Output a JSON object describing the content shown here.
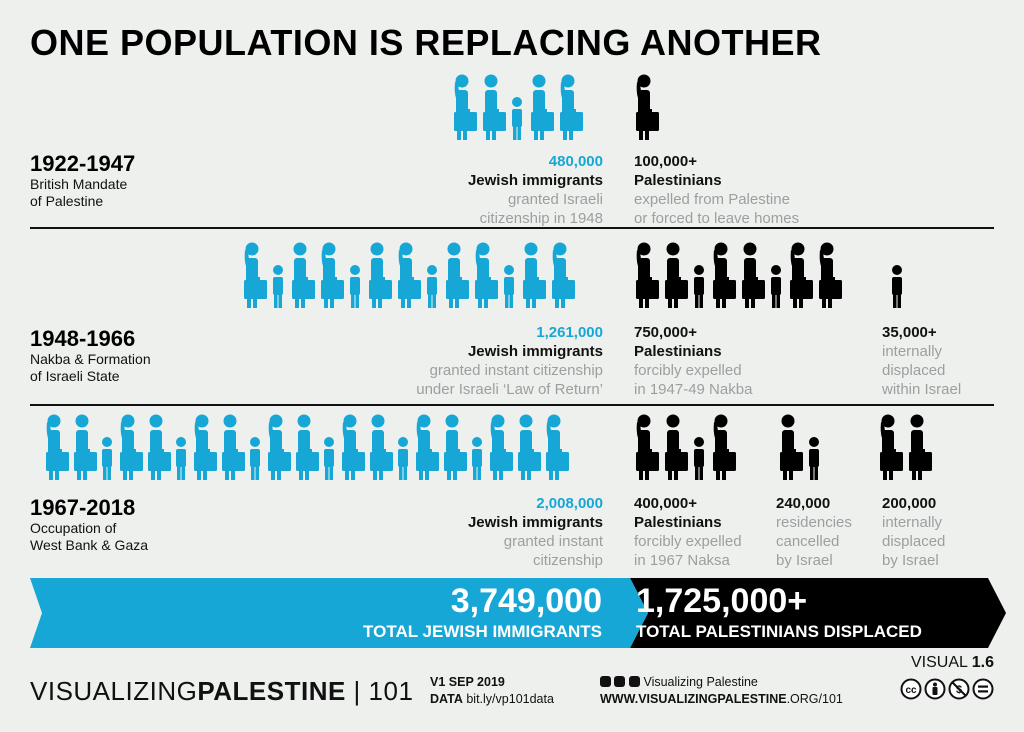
{
  "title": "ONE POPULATION IS REPLACING ANOTHER",
  "colors": {
    "jewish": "#17a7d6",
    "palestinian": "#000000",
    "muted": "#9aa0a0"
  },
  "icons": {
    "figure": "person-icon",
    "suitcase": "suitcase-icon"
  },
  "periods": [
    {
      "years": "1922-1947",
      "desc1": "British Mandate",
      "desc2": "of Palestine",
      "jewish": {
        "value": "480,000",
        "label": "Jewish immigrants",
        "sub1": "granted Israeli",
        "sub2": "citizenship in 1948",
        "sub3": ""
      },
      "pal": [
        {
          "value": "100,000+",
          "label": "Palestinians",
          "sub1": "expelled from Palestine",
          "sub2": "or forced to leave homes",
          "sub3": ""
        }
      ]
    },
    {
      "years": "1948-1966",
      "desc1": "Nakba & Formation",
      "desc2": "of Israeli State",
      "jewish": {
        "value": "1,261,000",
        "label": "Jewish immigrants",
        "sub1": "granted instant citizenship",
        "sub2": "under Israeli ‘Law of Return’",
        "sub3": ""
      },
      "pal": [
        {
          "value": "750,000+",
          "label": "Palestinians",
          "sub1": "forcibly expelled",
          "sub2": "in 1947-49 Nakba",
          "sub3": ""
        },
        {
          "value": "35,000+",
          "label": "",
          "sub1": "internally",
          "sub2": "displaced",
          "sub3": "within Israel"
        }
      ]
    },
    {
      "years": "1967-2018",
      "desc1": "Occupation of",
      "desc2": "West Bank & Gaza",
      "jewish": {
        "value": "2,008,000",
        "label": "Jewish immigrants",
        "sub1": "granted instant",
        "sub2": "citizenship",
        "sub3": ""
      },
      "pal": [
        {
          "value": "400,000+",
          "label": "Palestinians",
          "sub1": "forcibly expelled",
          "sub2": "in 1967 Naksa",
          "sub3": ""
        },
        {
          "value": "240,000",
          "label": "",
          "sub1": "residencies",
          "sub2": "cancelled",
          "sub3": "by Israel"
        },
        {
          "value": "200,000",
          "label": "",
          "sub1": "internally",
          "sub2": "displaced",
          "sub3": "by Israel"
        }
      ]
    }
  ],
  "totals": {
    "jewish_value": "3,749,000",
    "jewish_label": "TOTAL JEWISH IMMIGRANTS",
    "pal_value": "1,725,000+",
    "pal_label": "TOTAL PALESTINIANS DISPLACED"
  },
  "footer": {
    "brand_light": "VISUALIZING",
    "brand_bold": "PALESTINE",
    "brand_num": "101",
    "version": "V1",
    "date": "SEP 2019",
    "data_label": "DATA",
    "data_url": "bit.ly/vp101data",
    "social": "Visualizing Palestine",
    "site_pre": "WWW.",
    "site_bold": "VISUALIZINGPALESTINE",
    "site_post": ".ORG/101",
    "visual_label": "VISUAL",
    "visual_num": "1.6"
  }
}
